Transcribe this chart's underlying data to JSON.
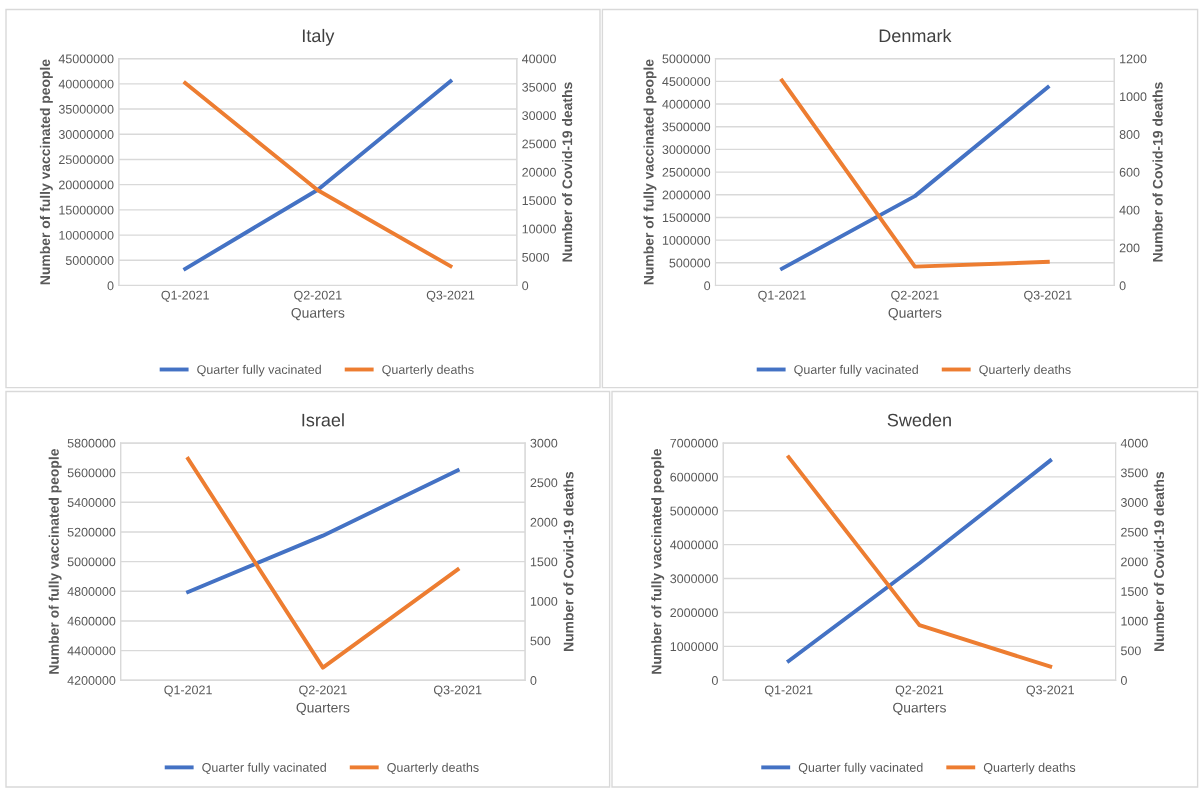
{
  "chart_data": [
    {
      "type": "line",
      "title": "Italy",
      "xlabel": "Quarters",
      "ylabel": "Number of fully vaccinated people",
      "y2label": "Number of Covid-19 deaths",
      "categories": [
        "Q1-2021",
        "Q2-2021",
        "Q3-2021"
      ],
      "series": [
        {
          "name": "Quarter fully vacinated",
          "color": "#4472c4",
          "values": [
            3300000,
            19000000,
            40500000
          ]
        },
        {
          "name": "Quarterly deaths",
          "color": "#ed7d31",
          "axis": "y2",
          "values": [
            35700,
            16800,
            3400
          ]
        }
      ],
      "ylim": [
        0,
        45000000
      ],
      "yticks": [
        0,
        5000000,
        10000000,
        15000000,
        20000000,
        25000000,
        30000000,
        35000000,
        40000000,
        45000000
      ],
      "y2lim": [
        0,
        40000
      ],
      "y2ticks": [
        0,
        5000,
        10000,
        15000,
        20000,
        25000,
        30000,
        35000,
        40000
      ],
      "grid": "y",
      "legend": "bottom",
      "marker": "none",
      "line_style": "solid"
    },
    {
      "type": "line",
      "title": "Denmark",
      "xlabel": "Quarters",
      "ylabel": "Number of fully vaccinated people",
      "y2label": "Number of Covid-19 deaths",
      "categories": [
        "Q1-2021",
        "Q2-2021",
        "Q3-2021"
      ],
      "series": [
        {
          "name": "Quarter fully vacinated",
          "color": "#4472c4",
          "values": [
            370000,
            1970000,
            4370000
          ]
        },
        {
          "name": "Quarterly deaths",
          "color": "#ed7d31",
          "axis": "y2",
          "values": [
            1085,
            100,
            125
          ]
        }
      ],
      "ylim": [
        0,
        5000000
      ],
      "yticks": [
        0,
        500000,
        1000000,
        1500000,
        2000000,
        2500000,
        3000000,
        3500000,
        4000000,
        4500000,
        5000000
      ],
      "y2lim": [
        0,
        1200
      ],
      "y2ticks": [
        0,
        200,
        400,
        600,
        800,
        1000,
        1200
      ],
      "grid": "y",
      "legend": "bottom",
      "marker": "none",
      "line_style": "solid"
    },
    {
      "type": "line",
      "title": "Israel",
      "xlabel": "Quarters",
      "ylabel": "Number of fully vaccinated people",
      "y2label": "Number of Covid-19 deaths",
      "categories": [
        "Q1-2021",
        "Q2-2021",
        "Q3-2021"
      ],
      "series": [
        {
          "name": "Quarter fully vacinated",
          "color": "#4472c4",
          "values": [
            4795000,
            5175000,
            5615000
          ]
        },
        {
          "name": "Quarterly deaths",
          "color": "#ed7d31",
          "axis": "y2",
          "values": [
            2800,
            160,
            1400
          ]
        }
      ],
      "ylim": [
        4200000,
        5800000
      ],
      "yticks": [
        4200000,
        4400000,
        4600000,
        4800000,
        5000000,
        5200000,
        5400000,
        5600000,
        5800000
      ],
      "y2lim": [
        0,
        3000
      ],
      "y2ticks": [
        0,
        500,
        1000,
        1500,
        2000,
        2500,
        3000
      ],
      "grid": "y",
      "legend": "bottom",
      "marker": "none",
      "line_style": "solid"
    },
    {
      "type": "line",
      "title": "Sweden",
      "xlabel": "Quarters",
      "ylabel": "Number of fully vaccinated people",
      "y2label": "Number of Covid-19 deaths",
      "categories": [
        "Q1-2021",
        "Q2-2021",
        "Q3-2021"
      ],
      "series": [
        {
          "name": "Quarter fully vacinated",
          "color": "#4472c4",
          "values": [
            570000,
            3450000,
            6480000
          ]
        },
        {
          "name": "Quarterly deaths",
          "color": "#ed7d31",
          "axis": "y2",
          "values": [
            3760,
            930,
            230
          ]
        }
      ],
      "ylim": [
        0,
        7000000
      ],
      "yticks": [
        0,
        1000000,
        2000000,
        3000000,
        4000000,
        5000000,
        6000000,
        7000000
      ],
      "y2lim": [
        0,
        4000
      ],
      "y2ticks": [
        0,
        500,
        1000,
        1500,
        2000,
        2500,
        3000,
        3500,
        4000
      ],
      "grid": "y",
      "legend": "bottom",
      "marker": "none",
      "line_style": "solid"
    }
  ]
}
